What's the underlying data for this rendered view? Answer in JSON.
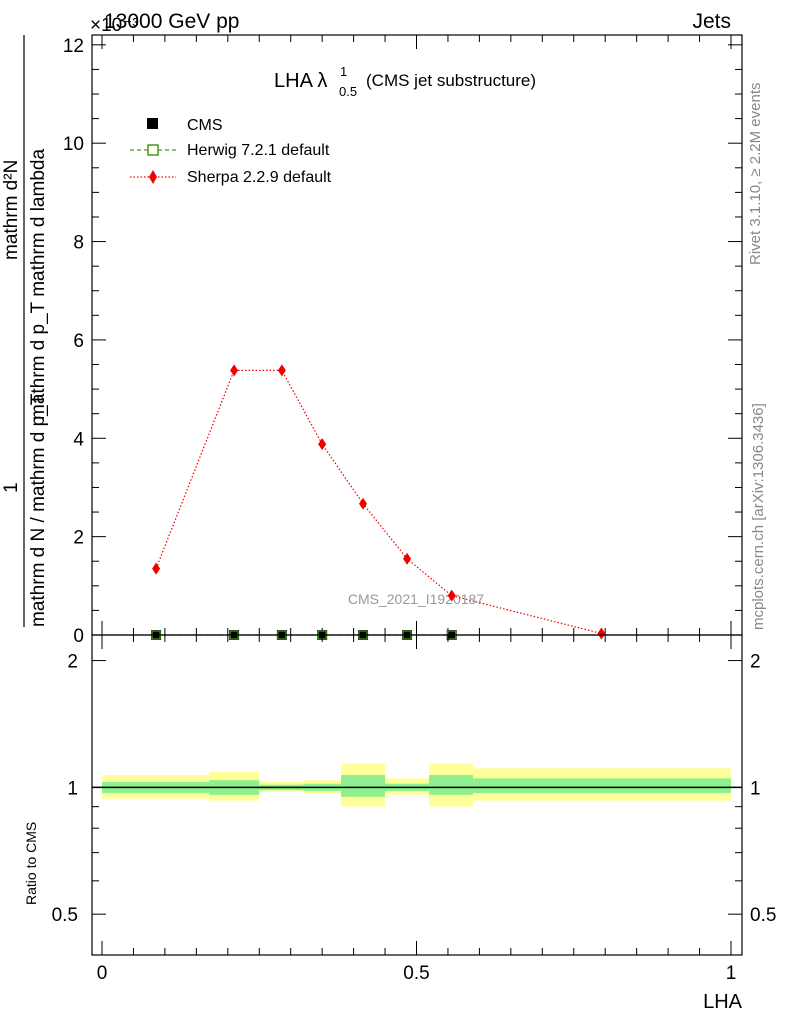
{
  "header": {
    "energy_label": "13000 GeV pp",
    "category_label": "Jets",
    "exponent_label": "×10⁻³"
  },
  "side_labels": {
    "rivet": "Rivet 3.1.10, ≥ 2.2M events",
    "mcplots": "mcplots.cern.ch [arXiv:1306.3436]"
  },
  "watermark": "CMS_2021_I1920187",
  "chart_data": [
    {
      "type": "line",
      "title_main": "LHA λ",
      "title_sup": "1",
      "title_sub": "0.5",
      "title_tail": "(CMS jet substructure)",
      "ylabel_num": "mathrm d²N",
      "ylabel_mid": "mathrm d p_T mathrm d lambda",
      "ylabel_prefix": "1",
      "ylabel_den": "mathrm d N / mathrm d p_T",
      "ylim": [
        0,
        12.2
      ],
      "y_ticks": [
        0,
        2,
        4,
        6,
        8,
        10,
        12
      ],
      "xlim": [
        0,
        1
      ],
      "legend": {
        "placement": "top-left"
      },
      "series": [
        {
          "name": "CMS",
          "color": "#000000",
          "marker": "square",
          "x": [
            0.086,
            0.21,
            0.286,
            0.35,
            0.415,
            0.485,
            0.556
          ],
          "y": [
            0.0,
            0.0,
            0.0,
            0.0,
            0.0,
            0.0,
            0.0
          ]
        },
        {
          "name": "Herwig 7.2.1 default",
          "color": "#4a9a1e",
          "marker": "open-square",
          "x": [
            0.086,
            0.21,
            0.286,
            0.35,
            0.415,
            0.485,
            0.556
          ],
          "y": [
            0.0,
            0.0,
            0.0,
            0.0,
            0.0,
            0.0,
            0.0
          ]
        },
        {
          "name": "Sherpa 2.2.9 default",
          "color": "#ee0000",
          "marker": "diamond",
          "x": [
            0.086,
            0.21,
            0.286,
            0.35,
            0.415,
            0.485,
            0.556,
            0.794
          ],
          "y": [
            1.35,
            5.38,
            5.38,
            3.88,
            2.67,
            1.55,
            0.8,
            0.03
          ]
        }
      ]
    },
    {
      "type": "area",
      "ylabel": "Ratio to CMS",
      "xlabel": "LHA",
      "ylim": [
        0.4,
        2.3
      ],
      "log_scale_y": true,
      "y_ticks": [
        0.5,
        1,
        2
      ],
      "y_tick_labels": [
        "0.5",
        "1",
        "2"
      ],
      "x_ticks": [
        0,
        0.5,
        1
      ],
      "x_tick_labels": [
        "0",
        "0.5",
        "1"
      ],
      "xlim": [
        0,
        1
      ],
      "bins": [
        {
          "lo": 0.0,
          "hi": 0.17,
          "stat_lo": 0.97,
          "stat_hi": 1.03,
          "tot_lo": 0.94,
          "tot_hi": 1.07
        },
        {
          "lo": 0.17,
          "hi": 0.25,
          "stat_lo": 0.96,
          "stat_hi": 1.04,
          "tot_lo": 0.93,
          "tot_hi": 1.09
        },
        {
          "lo": 0.25,
          "hi": 0.32,
          "stat_lo": 0.985,
          "stat_hi": 1.015,
          "tot_lo": 0.975,
          "tot_hi": 1.03
        },
        {
          "lo": 0.32,
          "hi": 0.38,
          "stat_lo": 0.98,
          "stat_hi": 1.02,
          "tot_lo": 0.965,
          "tot_hi": 1.04
        },
        {
          "lo": 0.38,
          "hi": 0.45,
          "stat_lo": 0.95,
          "stat_hi": 1.07,
          "tot_lo": 0.9,
          "tot_hi": 1.14
        },
        {
          "lo": 0.45,
          "hi": 0.52,
          "stat_lo": 0.98,
          "stat_hi": 1.02,
          "tot_lo": 0.96,
          "tot_hi": 1.05
        },
        {
          "lo": 0.52,
          "hi": 0.59,
          "stat_lo": 0.96,
          "stat_hi": 1.07,
          "tot_lo": 0.9,
          "tot_hi": 1.14
        },
        {
          "lo": 0.59,
          "hi": 1.0,
          "stat_lo": 0.97,
          "stat_hi": 1.05,
          "tot_lo": 0.93,
          "tot_hi": 1.11
        }
      ],
      "stat_color": "#8ef08e",
      "tot_color": "#ffff99"
    }
  ]
}
